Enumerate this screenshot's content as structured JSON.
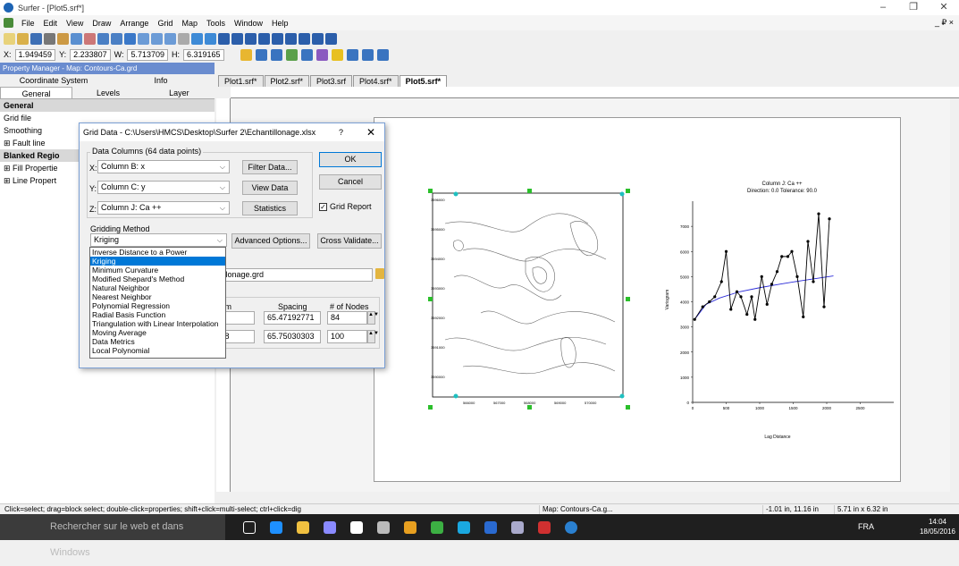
{
  "window": {
    "title": "Surfer - [Plot5.srf*]",
    "min": "–",
    "max": "❐",
    "close": "✕"
  },
  "menu": {
    "items": [
      "File",
      "Edit",
      "View",
      "Draw",
      "Arrange",
      "Grid",
      "Map",
      "Tools",
      "Window",
      "Help"
    ],
    "right": "_ ₽ ×"
  },
  "coords": {
    "x_label": "X:",
    "x": "1.949459",
    "y_label": "Y:",
    "y": "2.233807",
    "w_label": "W:",
    "w": "5.713709",
    "h_label": "H:",
    "h": "6.319165"
  },
  "property_manager": {
    "title": "Property Manager - Map: Contours-Ca.grd",
    "tabs_row1": [
      "Coordinate System",
      "Info"
    ],
    "tabs_row2": [
      "General",
      "Levels",
      "Layer"
    ],
    "tree": [
      {
        "label": "General",
        "group": true
      },
      {
        "label": "Grid file",
        "group": false
      },
      {
        "label": "Smoothing",
        "group": false
      },
      {
        "label": "⊞  Fault line",
        "group": false
      },
      {
        "label": "Blanked Regio",
        "group": true
      },
      {
        "label": "⊞  Fill Propertie",
        "group": false
      },
      {
        "label": "⊞  Line Propert",
        "group": false
      }
    ]
  },
  "doc_tabs": [
    "Plot1.srf*",
    "Plot2.srf*",
    "Plot3.srf",
    "Plot4.srf*",
    "Plot5.srf*"
  ],
  "dialog": {
    "title": "Grid Data - C:\\Users\\HMCS\\Desktop\\Surfer 2\\Echantillonage.xlsx",
    "help": "?",
    "close": "✕",
    "data_columns_label": "Data Columns  (64 data points)",
    "x_label": "X:",
    "x_value": "Column B:  x",
    "y_label": "Y:",
    "y_value": "Column C:  y",
    "z_label": "Z:",
    "z_value": "Column J:  Ca ++",
    "filter_button": "Filter Data...",
    "view_button": "View Data",
    "stats_button": "Statistics",
    "ok_button": "OK",
    "cancel_button": "Cancel",
    "grid_report_label": "Grid Report",
    "gridding_method_label": "Gridding Method",
    "gridding_method_value": "Kriging",
    "advanced_button": "Advanced Options...",
    "cross_validate_button": "Cross Validate...",
    "output_file": "ntillonage.grd",
    "col_minimum": "mum",
    "col_spacing": "Spacing",
    "col_nodes": "# of Nodes",
    "row1_min": "",
    "row1_spacing": "65.47192771",
    "row1_nodes": "84",
    "row2_min": "6.28",
    "row2_spacing": "65.75030303",
    "row2_nodes": "100",
    "methods": [
      "Inverse Distance to a Power",
      "Kriging",
      "Minimum Curvature",
      "Modified Shepard's Method",
      "Natural Neighbor",
      "Nearest Neighbor",
      "Polynomial Regression",
      "Radial Basis Function",
      "Triangulation with Linear Interpolation",
      "Moving Average",
      "Data Metrics",
      "Local Polynomial"
    ],
    "selected_method_index": 1
  },
  "contour_map": {
    "y_ticks": [
      "3596000",
      "3595000",
      "3594000",
      "3593000",
      "3592000",
      "3591000",
      "3590000"
    ],
    "x_ticks": [
      "566000",
      "567000",
      "568000",
      "569000",
      "570000"
    ]
  },
  "chart_data": {
    "type": "scatter",
    "title": "Column J:  Ca ++",
    "subtitle": "Direction: 0.0   Tolerance: 90.0",
    "xlabel": "Lag Distance",
    "ylabel": "Variogram",
    "xlim": [
      0,
      3000
    ],
    "ylim": [
      0,
      8000
    ],
    "x_ticks": [
      0,
      500,
      1000,
      1500,
      2000,
      2500
    ],
    "y_ticks": [
      0,
      1000,
      2000,
      3000,
      4000,
      5000,
      6000,
      7000
    ],
    "series": [
      {
        "values": [
          [
            30,
            3300
          ],
          [
            150,
            3800
          ],
          [
            250,
            4000
          ],
          [
            330,
            4200
          ],
          [
            430,
            4800
          ],
          [
            500,
            6000
          ],
          [
            570,
            3700
          ],
          [
            660,
            4400
          ],
          [
            720,
            4200
          ],
          [
            810,
            3500
          ],
          [
            880,
            4200
          ],
          [
            930,
            3300
          ],
          [
            1030,
            5000
          ],
          [
            1110,
            3900
          ],
          [
            1180,
            4700
          ],
          [
            1260,
            5200
          ],
          [
            1330,
            5800
          ],
          [
            1420,
            5800
          ],
          [
            1480,
            6000
          ],
          [
            1560,
            5000
          ],
          [
            1650,
            3400
          ],
          [
            1720,
            6400
          ],
          [
            1800,
            4800
          ],
          [
            1880,
            7500
          ],
          [
            1960,
            3800
          ],
          [
            2040,
            7300
          ]
        ]
      },
      {
        "values": [
          [
            30,
            3300
          ],
          [
            200,
            3900
          ],
          [
            400,
            4150
          ],
          [
            700,
            4400
          ],
          [
            1000,
            4560
          ],
          [
            1300,
            4700
          ],
          [
            1600,
            4830
          ],
          [
            1900,
            4950
          ],
          [
            2100,
            5030
          ]
        ]
      }
    ],
    "colors": [
      "#000000",
      "#2a2ad8"
    ]
  },
  "status": {
    "hint": "Click=select; drag=block select; double-click=properties; shift+click=multi-select; ctrl+click=dig",
    "map": "Map: Contours-Ca.g...",
    "pos": "-1.01 in, 11.16 in",
    "size": "5.71 in x 6.32 in"
  },
  "taskbar": {
    "search": "Rechercher sur le web et dans Windows",
    "lang": "FRA",
    "time": "14:04",
    "date": "18/05/2016"
  }
}
